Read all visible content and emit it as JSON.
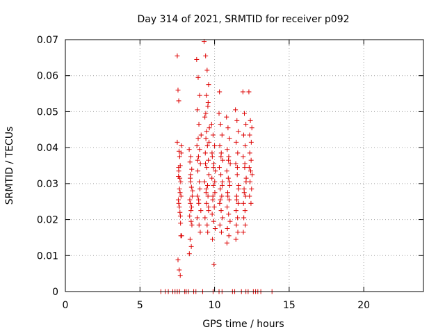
{
  "chart_data": {
    "type": "scatter",
    "title": "Day 314 of 2021, SRMTID for receiver p092",
    "xlabel": "GPS time / hours",
    "ylabel": "SRMTID / TECUs",
    "xlim": [
      0,
      24
    ],
    "ylim": [
      0,
      0.07
    ],
    "grid": true,
    "marker": "+",
    "series_color": "#dd0000",
    "x_ticks": [
      0,
      5,
      10,
      15,
      20
    ],
    "x_tick_labels": [
      "0",
      "5",
      "10",
      "15",
      "20"
    ],
    "y_ticks": [
      0,
      0.01,
      0.02,
      0.03,
      0.04,
      0.05,
      0.06,
      0.07
    ],
    "y_tick_labels": [
      "0",
      "0.01",
      "0.02",
      "0.03",
      "0.04",
      "0.05",
      "0.06",
      "0.07"
    ],
    "series": [
      {
        "name": "SRMTID",
        "x": [
          7.5,
          7.55,
          7.6,
          7.5,
          7.62,
          7.7,
          7.58,
          7.65,
          7.75,
          7.6,
          7.68,
          7.72,
          7.8,
          7.55,
          7.63,
          7.7,
          7.78,
          7.66,
          7.6,
          7.73,
          7.69,
          7.57,
          7.64,
          7.71,
          7.76,
          7.59,
          7.67,
          7.74,
          8.3,
          8.35,
          8.4,
          8.45,
          8.5,
          8.38,
          8.42,
          8.33,
          8.48,
          8.36,
          8.44,
          8.31,
          8.47,
          8.39,
          8.52,
          8.34,
          8.41,
          8.46,
          8.37,
          8.43,
          8.8,
          8.9,
          9.0,
          8.85,
          8.95,
          9.1,
          8.82,
          8.92,
          9.05,
          8.88,
          8.98,
          9.02,
          8.86,
          8.94,
          9.08,
          8.84,
          8.96,
          9.04,
          8.9,
          9.0,
          8.87,
          8.93,
          9.3,
          9.4,
          9.5,
          9.6,
          9.45,
          9.55,
          9.35,
          9.65,
          9.42,
          9.52,
          9.38,
          9.58,
          9.48,
          9.62,
          9.33,
          9.44,
          9.56,
          9.46,
          9.6,
          9.36,
          9.5,
          9.54,
          9.41,
          9.57,
          9.47,
          9.63,
          9.39,
          9.53,
          9.43,
          9.59,
          9.8,
          9.9,
          10.0,
          9.85,
          9.95,
          10.05,
          9.82,
          9.92,
          10.02,
          9.88,
          9.98,
          9.84,
          9.94,
          10.04,
          9.86,
          9.96,
          9.83,
          9.93,
          10.01,
          9.89,
          10.3,
          10.4,
          10.5,
          10.35,
          10.45,
          10.55,
          10.32,
          10.42,
          10.52,
          10.38,
          10.48,
          10.34,
          10.44,
          10.54,
          10.36,
          10.46,
          10.33,
          10.43,
          10.51,
          10.39,
          10.8,
          10.9,
          11.0,
          10.85,
          10.95,
          11.05,
          10.82,
          10.92,
          11.02,
          10.88,
          10.98,
          10.84,
          10.94,
          11.04,
          10.86,
          10.96,
          10.83,
          10.93,
          11.01,
          10.89,
          11.4,
          11.5,
          11.6,
          11.45,
          11.55,
          11.42,
          11.52,
          11.62,
          11.48,
          11.58,
          11.44,
          11.54,
          11.46,
          11.56,
          11.43,
          11.53,
          11.61,
          11.49,
          11.9,
          12.0,
          12.1,
          11.95,
          12.05,
          11.92,
          12.02,
          12.12,
          11.98,
          12.08,
          11.94,
          12.04,
          11.96,
          12.06,
          11.93,
          12.03,
          12.11,
          11.99,
          12.3,
          12.4,
          12.5,
          12.35,
          12.45,
          12.32,
          12.42,
          12.52,
          12.38,
          12.48,
          12.34,
          12.44,
          12.36,
          12.46,
          6.4,
          6.7,
          6.9,
          7.2,
          7.35,
          7.5,
          7.65,
          8.0,
          8.1,
          8.25,
          8.6,
          8.75,
          9.2,
          9.9,
          10.3,
          10.5,
          11.2,
          11.35,
          11.8,
          12.1,
          12.25,
          12.6,
          12.75,
          12.9,
          13.1,
          13.85
        ],
        "y": [
          0.0655,
          0.056,
          0.053,
          0.0415,
          0.039,
          0.035,
          0.032,
          0.0285,
          0.0265,
          0.0245,
          0.022,
          0.019,
          0.0155,
          0.0088,
          0.006,
          0.0045,
          0.0405,
          0.0375,
          0.0335,
          0.0305,
          0.0275,
          0.0255,
          0.0235,
          0.021,
          0.0385,
          0.0345,
          0.0315,
          0.0155,
          0.0395,
          0.036,
          0.0325,
          0.029,
          0.0265,
          0.0245,
          0.0225,
          0.021,
          0.0185,
          0.0145,
          0.0125,
          0.0105,
          0.034,
          0.0305,
          0.028,
          0.0255,
          0.0375,
          0.0235,
          0.0315,
          0.0195,
          0.0645,
          0.0595,
          0.0545,
          0.0505,
          0.0465,
          0.0435,
          0.0405,
          0.0375,
          0.0355,
          0.0335,
          0.0305,
          0.0285,
          0.0265,
          0.0245,
          0.0225,
          0.0205,
          0.0185,
          0.0165,
          0.0425,
          0.0395,
          0.0365,
          0.0255,
          0.0695,
          0.0655,
          0.0615,
          0.0575,
          0.0545,
          0.0515,
          0.0485,
          0.0455,
          0.0425,
          0.0405,
          0.0385,
          0.0365,
          0.0345,
          0.0325,
          0.0305,
          0.0285,
          0.0265,
          0.0245,
          0.0225,
          0.0205,
          0.0185,
          0.0165,
          0.0495,
          0.0525,
          0.0445,
          0.0415,
          0.0355,
          0.0295,
          0.0275,
          0.0235,
          0.0465,
          0.0435,
          0.0405,
          0.0375,
          0.0355,
          0.0335,
          0.0315,
          0.0295,
          0.0275,
          0.0255,
          0.0235,
          0.0215,
          0.0195,
          0.0175,
          0.0145,
          0.0075,
          0.0385,
          0.0345,
          0.0305,
          0.0265,
          0.0495,
          0.0465,
          0.0435,
          0.0405,
          0.0385,
          0.0365,
          0.0345,
          0.0325,
          0.0305,
          0.0285,
          0.0265,
          0.0245,
          0.0225,
          0.0205,
          0.0185,
          0.0165,
          0.0555,
          0.0375,
          0.0295,
          0.0255,
          0.0485,
          0.0455,
          0.0425,
          0.0395,
          0.0375,
          0.0355,
          0.0335,
          0.0315,
          0.0295,
          0.0275,
          0.0255,
          0.0235,
          0.0215,
          0.0195,
          0.0175,
          0.0155,
          0.0135,
          0.0365,
          0.0305,
          0.0265,
          0.0505,
          0.0475,
          0.0445,
          0.0415,
          0.0385,
          0.0355,
          0.0325,
          0.0295,
          0.0265,
          0.0245,
          0.0225,
          0.0205,
          0.0185,
          0.0165,
          0.0145,
          0.0345,
          0.0285,
          0.0255,
          0.0555,
          0.0495,
          0.0465,
          0.0435,
          0.0405,
          0.0375,
          0.0345,
          0.0315,
          0.0285,
          0.0265,
          0.0245,
          0.0225,
          0.0205,
          0.0185,
          0.0165,
          0.0355,
          0.0305,
          0.0275,
          0.0555,
          0.0475,
          0.0455,
          0.0435,
          0.0365,
          0.0345,
          0.0335,
          0.0325,
          0.0305,
          0.0285,
          0.0265,
          0.0245,
          0.0385,
          0.0415,
          0,
          0,
          0,
          0,
          0,
          0,
          0,
          0,
          0,
          0,
          0,
          0,
          0,
          0,
          0,
          0,
          0,
          0,
          0,
          0,
          0,
          0,
          0,
          0,
          0,
          0
        ]
      }
    ]
  }
}
